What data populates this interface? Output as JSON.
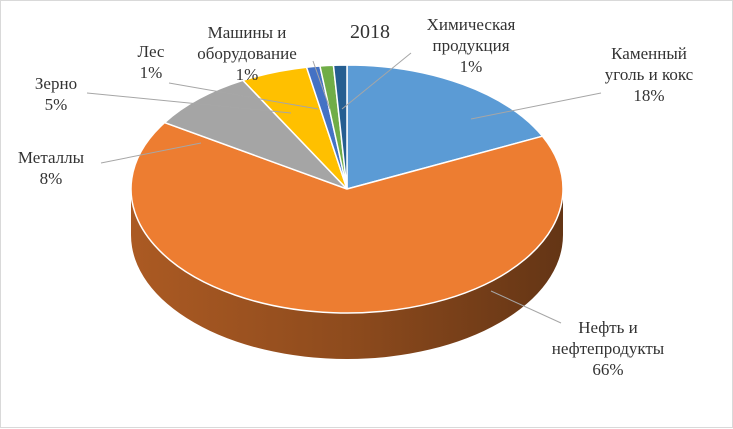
{
  "chart_data": {
    "type": "pie",
    "style": "3d",
    "title": "2018",
    "slices": [
      {
        "name": "Каменный уголь и кокс",
        "value": 18,
        "label_lines": [
          "Каменный",
          "уголь и кокс",
          "18%"
        ],
        "color": "#5b9bd5"
      },
      {
        "name": "Нефть и нефтепродукты",
        "value": 66,
        "label_lines": [
          "Нефть и",
          "нефтепродукты",
          "66%"
        ],
        "color": "#ed7d31"
      },
      {
        "name": "Металлы",
        "value": 8,
        "label_lines": [
          "Металлы",
          "8%"
        ],
        "color": "#a5a5a5"
      },
      {
        "name": "Зерно",
        "value": 5,
        "label_lines": [
          "Зерно",
          "5%"
        ],
        "color": "#ffc000"
      },
      {
        "name": "Лес",
        "value": 1,
        "label_lines": [
          "Лес",
          "1%"
        ],
        "color": "#4472c4"
      },
      {
        "name": "Машины и оборудование",
        "value": 1,
        "label_lines": [
          "Машины и",
          "оборудование",
          "1%"
        ],
        "color": "#70ad47"
      },
      {
        "name": "Химическая продукция",
        "value": 1,
        "label_lines": [
          "Химическая",
          "продукция",
          "1%"
        ],
        "color": "#255e91"
      }
    ]
  }
}
